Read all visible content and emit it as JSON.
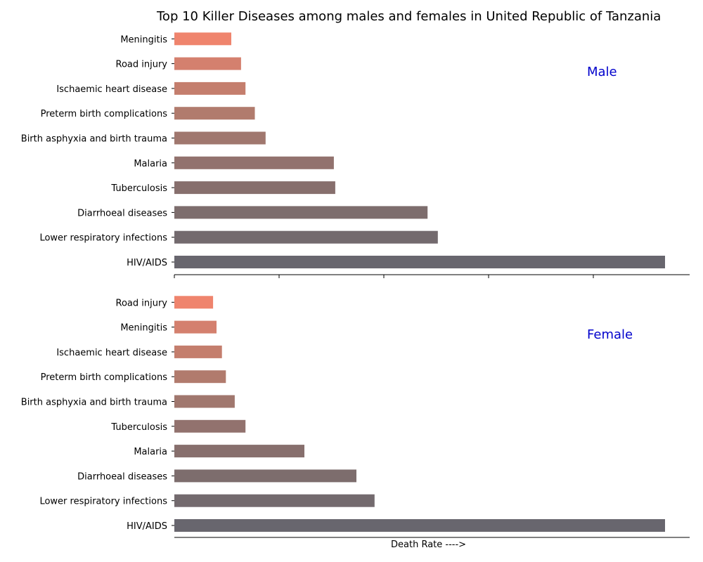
{
  "chart_data": {
    "type": "bar",
    "orientation": "horizontal",
    "title": "Top 10 Killer Diseases among males and females in United Republic of Tanzania",
    "xlabel": "Death Rate ---->",
    "panels": [
      {
        "label": "Male",
        "label_color": "#0000cc",
        "categories": [
          "HIV/AIDS",
          "Lower respiratory infections",
          "Diarrhoeal diseases",
          "Tuberculosis",
          "Malaria",
          "Birth asphyxia and birth trauma",
          "Preterm birth complications",
          "Ischaemic heart disease",
          "Road injury",
          "Meningitis"
        ],
        "values": [
          100,
          53.7,
          51.6,
          32.8,
          32.5,
          18.6,
          16.4,
          14.5,
          13.6,
          11.6
        ]
      },
      {
        "label": "Female",
        "label_color": "#0000cc",
        "categories": [
          "HIV/AIDS",
          "Lower respiratory infections",
          "Diarrhoeal diseases",
          "Malaria",
          "Tuberculosis",
          "Birth asphyxia and birth trauma",
          "Preterm birth complications",
          "Ischaemic heart disease",
          "Meningitis",
          "Road injury"
        ],
        "values": [
          100,
          40.8,
          37.1,
          26.5,
          14.5,
          12.3,
          10.5,
          9.7,
          8.6,
          7.9
        ]
      }
    ],
    "xlim": [
      0,
      105
    ],
    "bar_colors": [
      "#68666e",
      "#736a6e",
      "#7d6d6d",
      "#876f6d",
      "#92726e",
      "#a0776e",
      "#b17b6d",
      "#c47e6d",
      "#d4806e",
      "#ef846d"
    ],
    "grid": false,
    "legend": "none"
  }
}
